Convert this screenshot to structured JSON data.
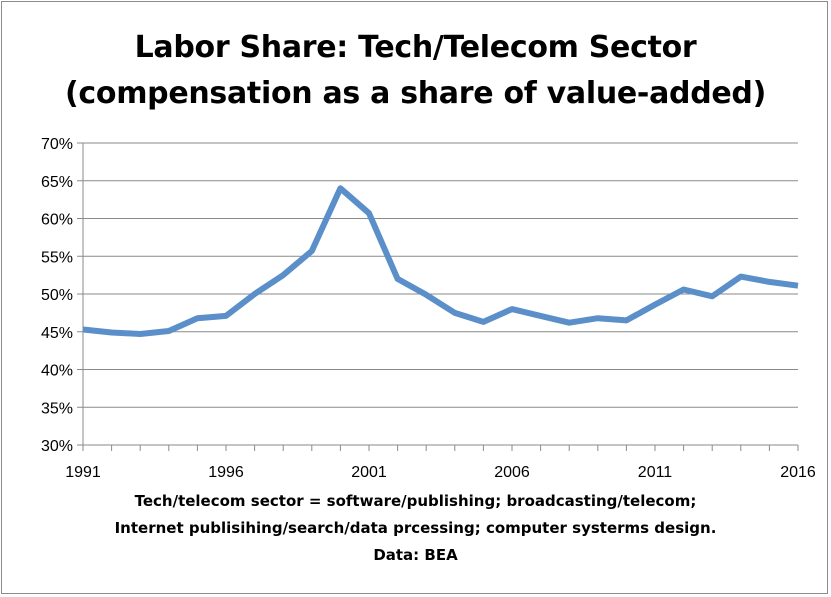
{
  "chart_data": {
    "type": "line",
    "title": "Labor Share: Tech/Telecom Sector",
    "subtitle": "(compensation as a share of value-added)",
    "footnotes": [
      "Tech/telecom sector = software/publishing; broadcasting/telecom;",
      "Internet publisihing/search/data prcessing; computer systerms design.",
      "Data: BEA"
    ],
    "x": [
      1991,
      1992,
      1993,
      1994,
      1995,
      1996,
      1997,
      1998,
      1999,
      2000,
      2001,
      2002,
      2003,
      2004,
      2005,
      2006,
      2007,
      2008,
      2009,
      2010,
      2011,
      2012,
      2013,
      2014,
      2015,
      2016
    ],
    "series": [
      {
        "values": [
          45.3,
          44.9,
          44.7,
          45.1,
          46.8,
          47.1,
          50.0,
          52.5,
          55.7,
          64.0,
          60.7,
          52.0,
          49.9,
          47.5,
          46.3,
          48.0,
          47.1,
          46.2,
          46.8,
          46.5,
          48.6,
          50.6,
          49.7,
          52.3,
          51.6,
          51.1
        ],
        "color": "#5b8fc9"
      }
    ],
    "x_ticks": [
      "1991",
      "1996",
      "2001",
      "2006",
      "2011",
      "2016"
    ],
    "x_tick_values": [
      1991,
      1996,
      2001,
      2006,
      2011,
      2016
    ],
    "y_ticks": [
      "30%",
      "35%",
      "40%",
      "45%",
      "50%",
      "55%",
      "60%",
      "65%",
      "70%"
    ],
    "y_tick_values": [
      30,
      35,
      40,
      45,
      50,
      55,
      60,
      65,
      70
    ],
    "xlim": [
      1991,
      2016
    ],
    "ylim": [
      30,
      70
    ],
    "grid": "horizontal",
    "legend": "none"
  }
}
